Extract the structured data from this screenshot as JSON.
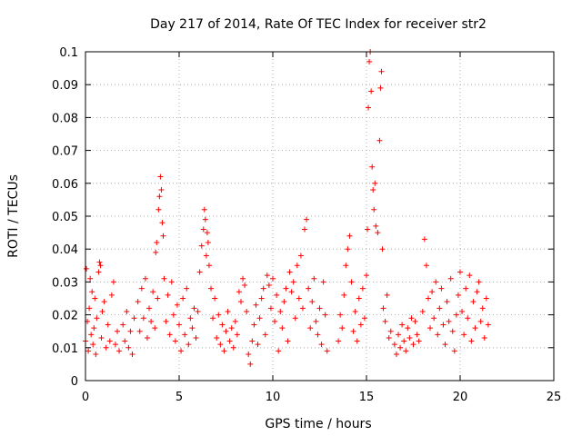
{
  "chart_data": {
    "type": "scatter",
    "title": "Day 217 of 2014, Rate Of TEC Index for receiver str2",
    "xlabel": "GPS time / hours",
    "ylabel": "ROTI / TECUs",
    "xlim": [
      0,
      25
    ],
    "ylim": [
      0,
      0.1
    ],
    "x_ticks": [
      0,
      5,
      10,
      15,
      20,
      25
    ],
    "y_ticks": [
      0,
      0.01,
      0.02,
      0.03,
      0.04,
      0.05,
      0.06,
      0.07,
      0.08,
      0.09,
      0.1
    ],
    "x_tick_labels": [
      "0",
      "5",
      "10",
      "15",
      "20",
      "25"
    ],
    "y_tick_labels": [
      "0",
      "0.01",
      "0.02",
      "0.03",
      "0.04",
      "0.05",
      "0.06",
      "0.07",
      "0.08",
      "0.09",
      "0.1"
    ],
    "grid": true,
    "marker": "plus",
    "color": "#ff0000",
    "series": [
      {
        "name": "ROTI",
        "points": [
          [
            0.0,
            0.012
          ],
          [
            0.05,
            0.034
          ],
          [
            0.1,
            0.018
          ],
          [
            0.15,
            0.009
          ],
          [
            0.2,
            0.022
          ],
          [
            0.25,
            0.031
          ],
          [
            0.3,
            0.014
          ],
          [
            0.35,
            0.027
          ],
          [
            0.4,
            0.011
          ],
          [
            0.45,
            0.016
          ],
          [
            0.5,
            0.025
          ],
          [
            0.55,
            0.008
          ],
          [
            0.6,
            0.019
          ],
          [
            0.7,
            0.033
          ],
          [
            0.75,
            0.036
          ],
          [
            0.8,
            0.035
          ],
          [
            0.85,
            0.013
          ],
          [
            0.9,
            0.021
          ],
          [
            1.0,
            0.024
          ],
          [
            1.1,
            0.01
          ],
          [
            1.2,
            0.017
          ],
          [
            1.3,
            0.012
          ],
          [
            1.4,
            0.026
          ],
          [
            1.5,
            0.03
          ],
          [
            1.6,
            0.011
          ],
          [
            1.7,
            0.015
          ],
          [
            1.8,
            0.009
          ],
          [
            2.0,
            0.017
          ],
          [
            2.1,
            0.012
          ],
          [
            2.2,
            0.021
          ],
          [
            2.3,
            0.01
          ],
          [
            2.4,
            0.015
          ],
          [
            2.5,
            0.008
          ],
          [
            2.6,
            0.019
          ],
          [
            2.8,
            0.024
          ],
          [
            2.9,
            0.015
          ],
          [
            3.0,
            0.028
          ],
          [
            3.1,
            0.019
          ],
          [
            3.2,
            0.031
          ],
          [
            3.3,
            0.013
          ],
          [
            3.4,
            0.022
          ],
          [
            3.5,
            0.018
          ],
          [
            3.6,
            0.027
          ],
          [
            3.7,
            0.016
          ],
          [
            3.75,
            0.039
          ],
          [
            3.8,
            0.042
          ],
          [
            3.85,
            0.025
          ],
          [
            3.9,
            0.052
          ],
          [
            3.95,
            0.056
          ],
          [
            4.0,
            0.062
          ],
          [
            4.05,
            0.058
          ],
          [
            4.1,
            0.048
          ],
          [
            4.15,
            0.044
          ],
          [
            4.2,
            0.031
          ],
          [
            4.3,
            0.018
          ],
          [
            4.4,
            0.026
          ],
          [
            4.5,
            0.014
          ],
          [
            4.6,
            0.03
          ],
          [
            4.7,
            0.02
          ],
          [
            4.8,
            0.012
          ],
          [
            4.9,
            0.023
          ],
          [
            5.0,
            0.017
          ],
          [
            5.1,
            0.009
          ],
          [
            5.2,
            0.025
          ],
          [
            5.3,
            0.014
          ],
          [
            5.4,
            0.028
          ],
          [
            5.5,
            0.011
          ],
          [
            5.6,
            0.019
          ],
          [
            5.7,
            0.016
          ],
          [
            5.8,
            0.022
          ],
          [
            5.9,
            0.013
          ],
          [
            6.0,
            0.021
          ],
          [
            6.1,
            0.033
          ],
          [
            6.2,
            0.041
          ],
          [
            6.3,
            0.046
          ],
          [
            6.35,
            0.052
          ],
          [
            6.4,
            0.049
          ],
          [
            6.45,
            0.038
          ],
          [
            6.5,
            0.045
          ],
          [
            6.55,
            0.042
          ],
          [
            6.6,
            0.035
          ],
          [
            6.7,
            0.028
          ],
          [
            6.8,
            0.019
          ],
          [
            6.9,
            0.025
          ],
          [
            7.0,
            0.013
          ],
          [
            7.1,
            0.02
          ],
          [
            7.2,
            0.011
          ],
          [
            7.3,
            0.017
          ],
          [
            7.4,
            0.009
          ],
          [
            7.5,
            0.015
          ],
          [
            7.6,
            0.021
          ],
          [
            7.7,
            0.012
          ],
          [
            7.8,
            0.016
          ],
          [
            7.9,
            0.01
          ],
          [
            8.0,
            0.018
          ],
          [
            8.1,
            0.014
          ],
          [
            8.2,
            0.027
          ],
          [
            8.3,
            0.024
          ],
          [
            8.4,
            0.031
          ],
          [
            8.5,
            0.029
          ],
          [
            8.6,
            0.021
          ],
          [
            8.7,
            0.008
          ],
          [
            8.8,
            0.005
          ],
          [
            8.9,
            0.012
          ],
          [
            9.0,
            0.017
          ],
          [
            9.1,
            0.023
          ],
          [
            9.2,
            0.011
          ],
          [
            9.3,
            0.019
          ],
          [
            9.4,
            0.025
          ],
          [
            9.5,
            0.028
          ],
          [
            9.6,
            0.014
          ],
          [
            9.7,
            0.032
          ],
          [
            9.8,
            0.029
          ],
          [
            9.9,
            0.022
          ],
          [
            10.0,
            0.031
          ],
          [
            10.1,
            0.018
          ],
          [
            10.2,
            0.026
          ],
          [
            10.3,
            0.009
          ],
          [
            10.4,
            0.021
          ],
          [
            10.5,
            0.016
          ],
          [
            10.6,
            0.024
          ],
          [
            10.7,
            0.028
          ],
          [
            10.8,
            0.012
          ],
          [
            10.9,
            0.033
          ],
          [
            11.0,
            0.027
          ],
          [
            11.1,
            0.03
          ],
          [
            11.2,
            0.019
          ],
          [
            11.3,
            0.035
          ],
          [
            11.4,
            0.025
          ],
          [
            11.5,
            0.038
          ],
          [
            11.6,
            0.022
          ],
          [
            11.7,
            0.046
          ],
          [
            11.8,
            0.049
          ],
          [
            11.9,
            0.028
          ],
          [
            12.0,
            0.016
          ],
          [
            12.1,
            0.024
          ],
          [
            12.2,
            0.031
          ],
          [
            12.3,
            0.018
          ],
          [
            12.4,
            0.014
          ],
          [
            12.5,
            0.022
          ],
          [
            12.6,
            0.011
          ],
          [
            12.7,
            0.03
          ],
          [
            12.8,
            0.02
          ],
          [
            12.9,
            0.009
          ],
          [
            13.5,
            0.012
          ],
          [
            13.6,
            0.02
          ],
          [
            13.7,
            0.016
          ],
          [
            13.8,
            0.026
          ],
          [
            13.9,
            0.035
          ],
          [
            14.0,
            0.04
          ],
          [
            14.1,
            0.044
          ],
          [
            14.2,
            0.03
          ],
          [
            14.3,
            0.015
          ],
          [
            14.4,
            0.021
          ],
          [
            14.5,
            0.012
          ],
          [
            14.6,
            0.025
          ],
          [
            14.7,
            0.017
          ],
          [
            14.8,
            0.028
          ],
          [
            14.9,
            0.019
          ],
          [
            15.0,
            0.032
          ],
          [
            15.05,
            0.046
          ],
          [
            15.1,
            0.083
          ],
          [
            15.15,
            0.097
          ],
          [
            15.2,
            0.1
          ],
          [
            15.25,
            0.088
          ],
          [
            15.3,
            0.065
          ],
          [
            15.35,
            0.058
          ],
          [
            15.4,
            0.052
          ],
          [
            15.45,
            0.06
          ],
          [
            15.5,
            0.047
          ],
          [
            15.6,
            0.045
          ],
          [
            15.7,
            0.073
          ],
          [
            15.75,
            0.089
          ],
          [
            15.8,
            0.094
          ],
          [
            15.85,
            0.04
          ],
          [
            15.9,
            0.022
          ],
          [
            16.0,
            0.018
          ],
          [
            16.1,
            0.026
          ],
          [
            16.2,
            0.013
          ],
          [
            16.3,
            0.015
          ],
          [
            16.5,
            0.011
          ],
          [
            16.6,
            0.008
          ],
          [
            16.7,
            0.014
          ],
          [
            16.8,
            0.01
          ],
          [
            16.9,
            0.017
          ],
          [
            17.0,
            0.012
          ],
          [
            17.1,
            0.009
          ],
          [
            17.2,
            0.016
          ],
          [
            17.3,
            0.013
          ],
          [
            17.4,
            0.019
          ],
          [
            17.5,
            0.011
          ],
          [
            17.6,
            0.018
          ],
          [
            17.7,
            0.014
          ],
          [
            17.8,
            0.012
          ],
          [
            18.0,
            0.021
          ],
          [
            18.1,
            0.043
          ],
          [
            18.2,
            0.035
          ],
          [
            18.3,
            0.025
          ],
          [
            18.4,
            0.016
          ],
          [
            18.5,
            0.027
          ],
          [
            18.6,
            0.019
          ],
          [
            18.7,
            0.03
          ],
          [
            18.8,
            0.014
          ],
          [
            18.9,
            0.022
          ],
          [
            19.0,
            0.028
          ],
          [
            19.1,
            0.017
          ],
          [
            19.2,
            0.011
          ],
          [
            19.3,
            0.024
          ],
          [
            19.4,
            0.018
          ],
          [
            19.5,
            0.031
          ],
          [
            19.6,
            0.015
          ],
          [
            19.7,
            0.009
          ],
          [
            19.8,
            0.02
          ],
          [
            19.9,
            0.026
          ],
          [
            20.0,
            0.033
          ],
          [
            20.1,
            0.021
          ],
          [
            20.2,
            0.014
          ],
          [
            20.3,
            0.028
          ],
          [
            20.4,
            0.019
          ],
          [
            20.5,
            0.032
          ],
          [
            20.6,
            0.012
          ],
          [
            20.7,
            0.024
          ],
          [
            20.8,
            0.016
          ],
          [
            20.9,
            0.027
          ],
          [
            21.0,
            0.03
          ],
          [
            21.1,
            0.018
          ],
          [
            21.2,
            0.022
          ],
          [
            21.3,
            0.013
          ],
          [
            21.4,
            0.025
          ],
          [
            21.5,
            0.017
          ]
        ]
      }
    ]
  }
}
